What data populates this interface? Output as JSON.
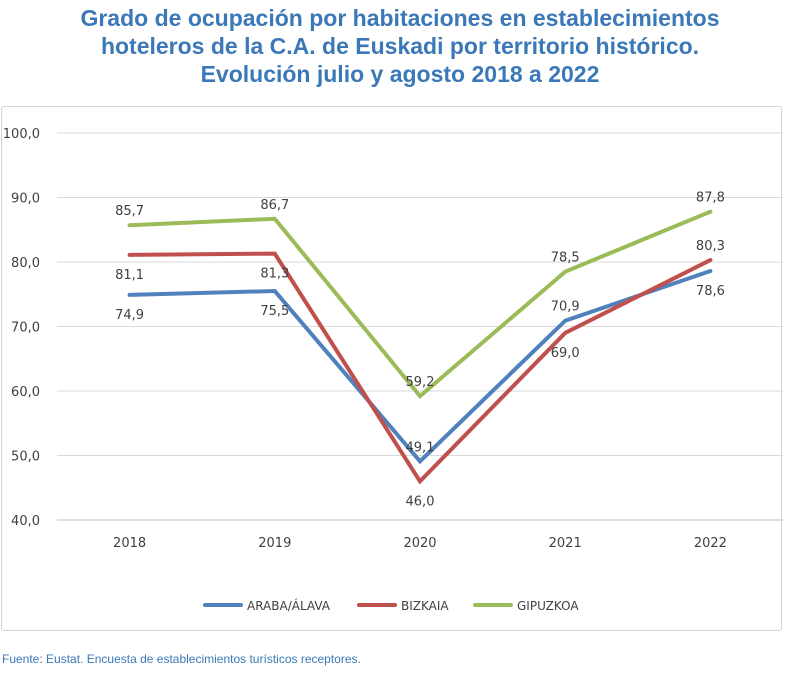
{
  "chart_data": {
    "type": "line",
    "title_lines": [
      "Grado de ocupación por habitaciones en establecimientos",
      "hoteleros de la C.A. de Euskadi por territorio histórico.",
      "Evolución julio y agosto 2018 a 2022"
    ],
    "categories": [
      "2018",
      "2019",
      "2020",
      "2021",
      "2022"
    ],
    "ylim": [
      40,
      100
    ],
    "yticks": [
      "40,0",
      "50,0",
      "60,0",
      "70,0",
      "80,0",
      "90,0",
      "100,0"
    ],
    "grid": true,
    "legend_position": "bottom",
    "series": [
      {
        "name": "ARABA/ÁLAVA",
        "color": "#4f81bd",
        "values": [
          74.9,
          75.5,
          49.1,
          70.9,
          78.6
        ],
        "labels": [
          "74,9",
          "75,5",
          "49,1",
          "70,9",
          "78,6"
        ]
      },
      {
        "name": "BIZKAIA",
        "color": "#c0504d",
        "values": [
          81.1,
          81.3,
          46.0,
          69.0,
          80.3
        ],
        "labels": [
          "81,1",
          "81,3",
          "46,0",
          "69,0",
          "80,3"
        ]
      },
      {
        "name": "GIPUZKOA",
        "color": "#9bbb59",
        "values": [
          85.7,
          86.7,
          59.2,
          78.5,
          87.8
        ],
        "labels": [
          "85,7",
          "86,7",
          "59,2",
          "78,5",
          "87,8"
        ]
      }
    ]
  },
  "source": "Fuente: Eustat. Encuesta de establecimientos turísticos receptores."
}
